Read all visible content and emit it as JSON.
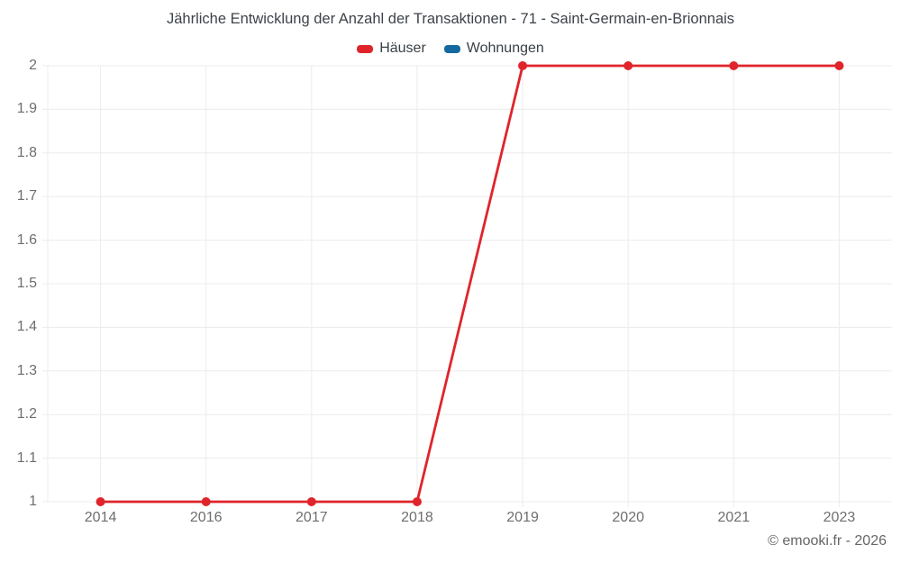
{
  "title": "Jährliche Entwicklung der Anzahl der Transaktionen - 71 - Saint-Germain-en-Brionnais",
  "copyright": "© emooki.fr - 2026",
  "legend": [
    {
      "id": "haeuser",
      "label": "Häuser",
      "color": "#e0242b"
    },
    {
      "id": "wohnungen",
      "label": "Wohnungen",
      "color": "#15699e"
    }
  ],
  "colors": {
    "background": "#ffffff",
    "grid": "#ececec",
    "axis_text": "#6e6e6e",
    "title_text": "#3d434a",
    "copyright_text": "#666666"
  },
  "chart_data": {
    "type": "line",
    "title": "Jährliche Entwicklung der Anzahl der Transaktionen - 71 - Saint-Germain-en-Brionnais",
    "xlabel": "",
    "ylabel": "",
    "categories": [
      "2014",
      "2016",
      "2017",
      "2018",
      "2019",
      "2020",
      "2021",
      "2023"
    ],
    "series": [
      {
        "id": "haeuser",
        "name": "Häuser",
        "color": "#e0242b",
        "values": [
          1,
          1,
          1,
          1,
          2,
          2,
          2,
          2
        ]
      },
      {
        "id": "wohnungen",
        "name": "Wohnungen",
        "color": "#15699e",
        "values": []
      }
    ],
    "ylim": [
      1,
      2
    ],
    "ytick_labels": [
      "1",
      "1.1",
      "1.2",
      "1.3",
      "1.4",
      "1.5",
      "1.6",
      "1.7",
      "1.8",
      "1.9",
      "2"
    ],
    "grid": true,
    "legend_position": "top"
  }
}
